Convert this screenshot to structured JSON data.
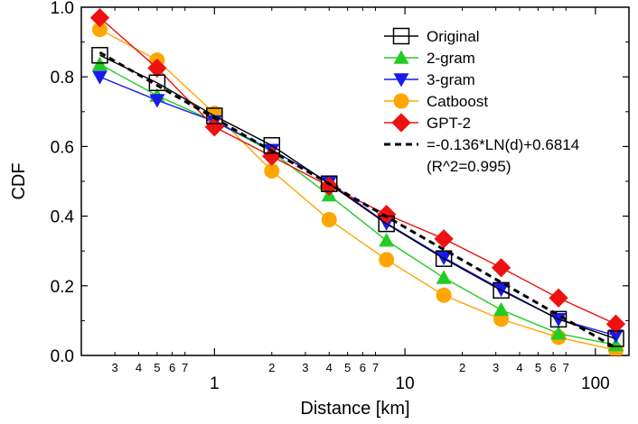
{
  "chart_data": {
    "type": "line",
    "title": "",
    "xlabel": "Distance [km]",
    "ylabel": "CDF",
    "xscale": "log",
    "xlim": [
      0.2,
      150
    ],
    "ylim": [
      0,
      1.0
    ],
    "grid": false,
    "legend_position": "top-right",
    "y_ticks": [
      "0.0",
      "0.2",
      "0.4",
      "0.6",
      "0.8",
      "1.0"
    ],
    "x_major_ticks": [
      {
        "value": 1,
        "label": "1"
      },
      {
        "value": 10,
        "label": "10"
      },
      {
        "value": 100,
        "label": "100"
      }
    ],
    "x_minor_ticks": [
      {
        "value": 0.3,
        "label": "3"
      },
      {
        "value": 0.4,
        "label": "4"
      },
      {
        "value": 0.5,
        "label": "5"
      },
      {
        "value": 0.6,
        "label": "6"
      },
      {
        "value": 0.7,
        "label": "7"
      },
      {
        "value": 2,
        "label": "2"
      },
      {
        "value": 3,
        "label": "3"
      },
      {
        "value": 4,
        "label": "4"
      },
      {
        "value": 5,
        "label": "5"
      },
      {
        "value": 6,
        "label": "6"
      },
      {
        "value": 7,
        "label": "7"
      },
      {
        "value": 20,
        "label": "2"
      },
      {
        "value": 30,
        "label": "3"
      },
      {
        "value": 40,
        "label": "4"
      },
      {
        "value": 50,
        "label": "5"
      },
      {
        "value": 60,
        "label": "6"
      },
      {
        "value": 70,
        "label": "7"
      }
    ],
    "x": [
      0.25,
      0.5,
      1,
      2,
      4,
      8,
      16,
      32,
      64,
      128
    ],
    "series": [
      {
        "name": "Original",
        "color": "#000000",
        "marker": "open-square",
        "values": [
          0.862,
          0.783,
          0.688,
          0.603,
          0.493,
          0.378,
          0.278,
          0.187,
          0.104,
          0.048
        ]
      },
      {
        "name": "2-gram",
        "color": "#22cc22",
        "marker": "triangle-up",
        "values": [
          0.836,
          0.746,
          0.672,
          0.585,
          0.46,
          0.33,
          0.223,
          0.131,
          0.063,
          0.03
        ]
      },
      {
        "name": "3-gram",
        "color": "#1a1aee",
        "marker": "triangle-down",
        "values": [
          0.8,
          0.733,
          0.672,
          0.59,
          0.497,
          0.38,
          0.281,
          0.19,
          0.104,
          0.057
        ]
      },
      {
        "name": "Catboost",
        "color": "#ffa500",
        "marker": "circle",
        "values": [
          0.936,
          0.848,
          0.695,
          0.53,
          0.39,
          0.275,
          0.173,
          0.104,
          0.052,
          0.015
        ]
      },
      {
        "name": "GPT-2",
        "color": "#ee1111",
        "marker": "diamond",
        "values": [
          0.97,
          0.825,
          0.656,
          0.572,
          0.486,
          0.405,
          0.335,
          0.252,
          0.165,
          0.09
        ]
      }
    ],
    "fit": {
      "name": "=-0.136*LN(d)+0.6814",
      "name_line2": "(R^2=0.995)",
      "color": "#000000",
      "style": "dashed",
      "a": -0.136,
      "b": 0.6814
    }
  }
}
